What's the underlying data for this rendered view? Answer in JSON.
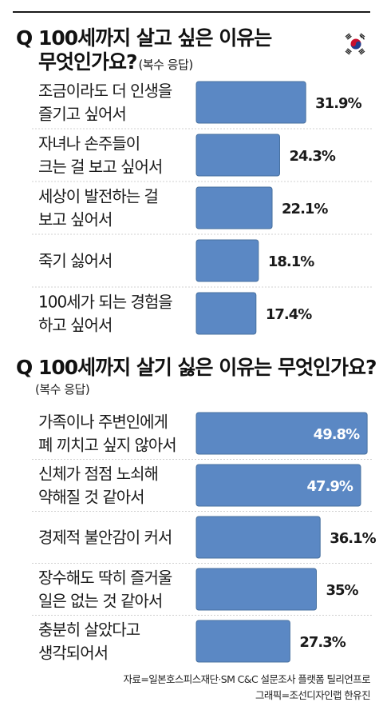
{
  "section1": {
    "title_line1": "Q 100세까지 살고 싶은 이유는",
    "title_line2": "무엇인가요?",
    "multiple": "(복수 응답)"
  },
  "section2": {
    "title": "Q 100세까지 살기 싫은 이유는 무엇인가요?",
    "multiple": "(복수 응답)"
  },
  "flag_icon": "south-korea-flag-icon",
  "colors": {
    "bar": "#5b88c4",
    "bar_border": "#47709f"
  },
  "chart_data": [
    {
      "type": "bar",
      "orientation": "horizontal",
      "unit": "%",
      "categories": [
        [
          "조금이라도 더 인생을",
          "즐기고 싶어서"
        ],
        [
          "자녀나 손주들이",
          "크는 걸 보고 싶어서"
        ],
        [
          "세상이 발전하는 걸",
          "보고 싶어서"
        ],
        [
          "죽기 싫어서"
        ],
        [
          "100세가 되는 경험을",
          "하고 싶어서"
        ]
      ],
      "values": [
        31.9,
        24.3,
        22.1,
        18.1,
        17.4
      ],
      "value_labels": [
        "31.9%",
        "24.3%",
        "22.1%",
        "18.1%",
        "17.4%"
      ],
      "xlim": [
        0,
        55
      ]
    },
    {
      "type": "bar",
      "orientation": "horizontal",
      "unit": "%",
      "categories": [
        [
          "가족이나 주변인에게",
          "폐 끼치고 싶지 않아서"
        ],
        [
          "신체가 점점 노쇠해",
          "약해질 것 같아서"
        ],
        [
          "경제적 불안감이 커서"
        ],
        [
          "장수해도 딱히 즐거울",
          "일은 없는 것 같아서"
        ],
        [
          "충분히 살았다고",
          "생각되어서"
        ]
      ],
      "values": [
        49.8,
        47.9,
        36.1,
        35,
        27.3
      ],
      "value_labels": [
        "49.8%",
        "47.9%",
        "36.1%",
        "35%",
        "27.3%"
      ],
      "xlim": [
        0,
        55
      ]
    }
  ],
  "source": {
    "line1": "자료=일본호스피스재단·SM C&C 설문조사 플랫폼 틸리언프로",
    "line2": "그래픽=조선디자인랩 한유진"
  }
}
